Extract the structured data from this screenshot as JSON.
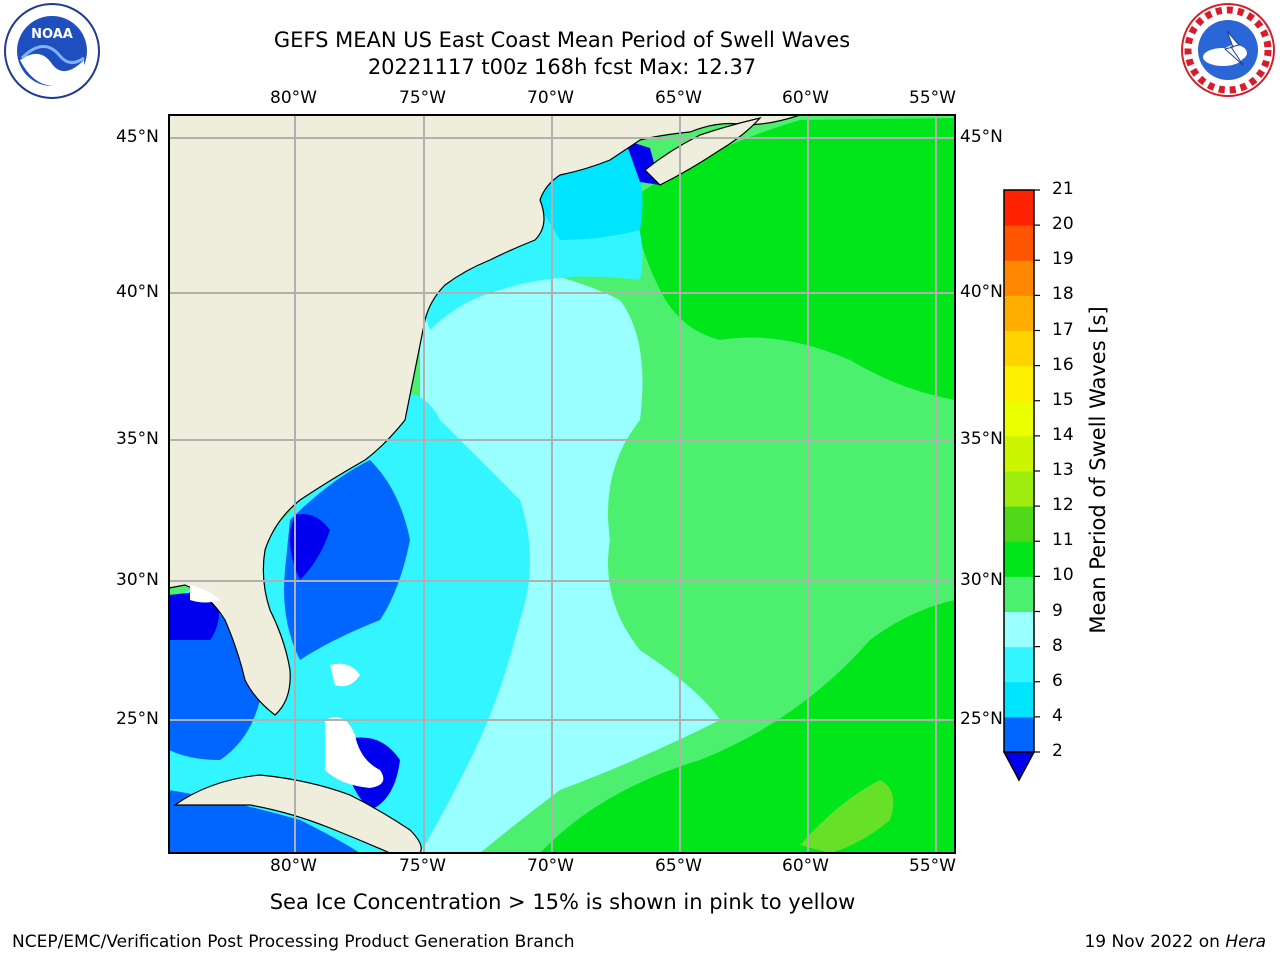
{
  "title_line1": "GEFS MEAN US East Coast Mean Period of Swell Waves",
  "title_line2": "20221117 t00z 168h fcst   Max: 12.37",
  "caption": "Sea Ice Concentration > 15% is shown in pink to yellow",
  "footer_left": "NCEP/EMC/Verification Post Processing Product Generation Branch",
  "footer_right_prefix": "19 Nov 2022 on ",
  "footer_right_host": "Hera",
  "logos": {
    "left": "noaa-logo",
    "right": "national-weather-service-logo"
  },
  "map": {
    "lon_ticks": [
      "80°W",
      "75°W",
      "70°W",
      "65°W",
      "60°W",
      "55°W"
    ],
    "lat_ticks": [
      "45°N",
      "40°N",
      "35°N",
      "30°N",
      "25°N"
    ],
    "lon_range": [
      -85,
      -54.5
    ],
    "lat_range": [
      20.5,
      46
    ],
    "land_color": "#efeedd",
    "grid_color": "#b0b0b0"
  },
  "colorbar": {
    "label": "Mean Period of Swell Waves [s]",
    "levels": [
      "2",
      "4",
      "6",
      "8",
      "9",
      "10",
      "11",
      "12",
      "13",
      "14",
      "15",
      "16",
      "17",
      "18",
      "19",
      "20",
      "21"
    ],
    "colors": [
      "#0066ff",
      "#00e5ff",
      "#33f5ff",
      "#99ffff",
      "#4def6e",
      "#00e61a",
      "#4fd91a",
      "#9eed0e",
      "#cbf500",
      "#eaff00",
      "#ffef00",
      "#ffd200",
      "#ffae00",
      "#ff8800",
      "#ff5500",
      "#ff2200"
    ],
    "under_color": "#0000ee"
  }
}
